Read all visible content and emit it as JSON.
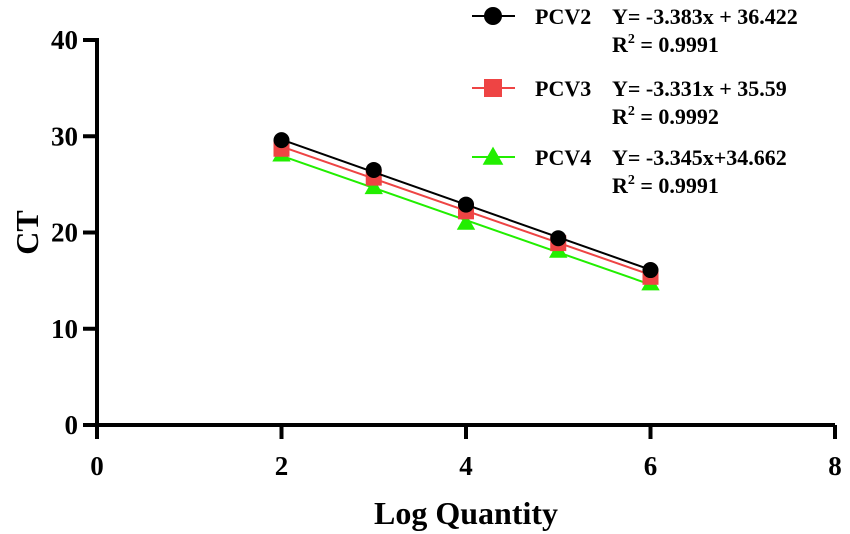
{
  "chart_data": {
    "type": "scatter",
    "title": "",
    "xlabel": "Log Quantity",
    "ylabel": "CT",
    "xlim": [
      0,
      8
    ],
    "ylim": [
      0,
      40
    ],
    "xticks": [
      "0",
      "2",
      "4",
      "6",
      "8"
    ],
    "yticks": [
      "0",
      "10",
      "20",
      "30",
      "40"
    ],
    "grid": false,
    "legend_position": "top-right",
    "series": [
      {
        "name": "PCV2",
        "color": "#000000",
        "marker": "circle",
        "x": [
          2,
          3,
          4,
          5,
          6
        ],
        "y": [
          29.6,
          26.5,
          22.9,
          19.4,
          16.1
        ],
        "fit": {
          "slope": -3.383,
          "intercept": 36.422
        },
        "equation": "Y= -3.383x + 36.422",
        "r2_label": "R",
        "r2_exp": "2",
        "r2_value": " = 0.9991"
      },
      {
        "name": "PCV3",
        "color": "#ee4444",
        "marker": "square",
        "x": [
          2,
          3,
          4,
          5,
          6
        ],
        "y": [
          28.7,
          25.7,
          22.2,
          18.9,
          15.4
        ],
        "fit": {
          "slope": -3.331,
          "intercept": 35.59
        },
        "equation": "Y= -3.331x + 35.59",
        "r2_label": "R",
        "r2_exp": "2",
        "r2_value": " = 0.9992"
      },
      {
        "name": "PCV4",
        "color": "#22ee00",
        "marker": "triangle",
        "x": [
          2,
          3,
          4,
          5,
          6
        ],
        "y": [
          28.1,
          24.7,
          21.0,
          18.1,
          14.7
        ],
        "fit": {
          "slope": -3.345,
          "intercept": 34.662
        },
        "equation": "Y= -3.345x+34.662",
        "r2_label": "R",
        "r2_exp": "2",
        "r2_value": " = 0.9991"
      }
    ]
  }
}
